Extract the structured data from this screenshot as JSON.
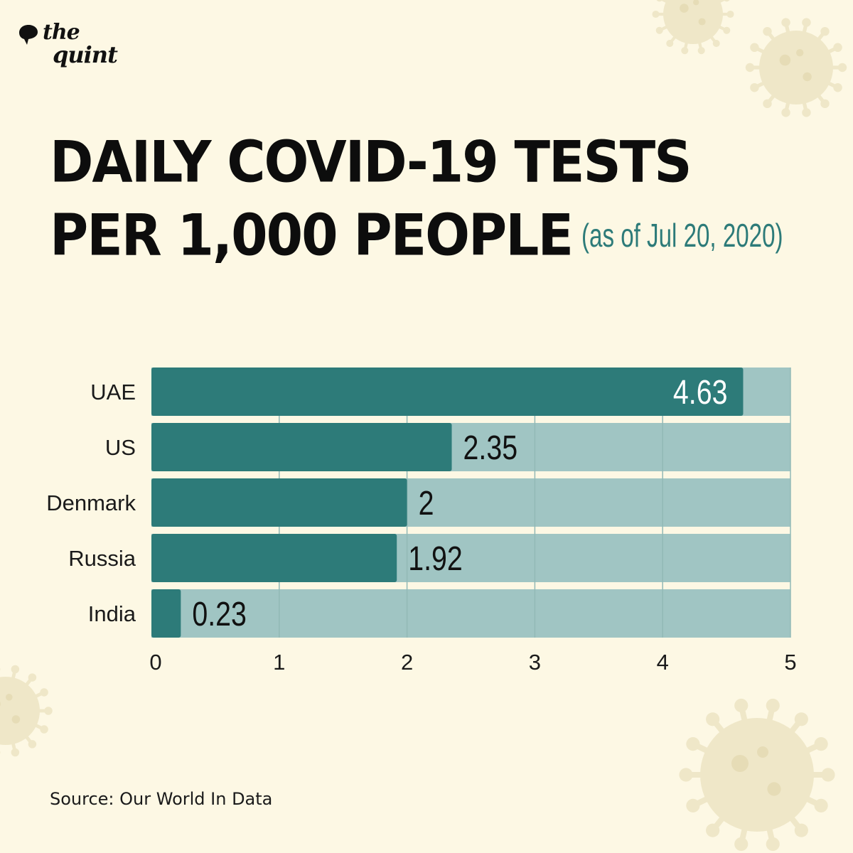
{
  "brand": {
    "logo_line1": "the",
    "logo_line2": "quint"
  },
  "header": {
    "title_line1": "DAILY COVID-19 TESTS",
    "title_line2": "PER 1,000 PEOPLE",
    "subtitle": "(as of Jul 20, 2020)"
  },
  "footer": {
    "source": "Source: Our World In Data"
  },
  "colors": {
    "background": "#fdf8e4",
    "bar_fill": "#2d7b79",
    "bar_track": "#a0c5c3",
    "subtitle": "#2d7b79",
    "virus_decoration": "#eee6c6"
  },
  "chart_data": {
    "type": "bar",
    "orientation": "horizontal",
    "categories": [
      "UAE",
      "US",
      "Denmark",
      "Russia",
      "India"
    ],
    "values": [
      4.63,
      2.35,
      2,
      1.92,
      0.23
    ],
    "value_labels": [
      "4.63",
      "2.35",
      "2",
      "1.92",
      "0.23"
    ],
    "xlim": [
      0,
      5
    ],
    "x_ticks": [
      0,
      1,
      2,
      3,
      4,
      5
    ],
    "x_tick_labels": [
      "0",
      "1",
      "2",
      "3",
      "4",
      "5"
    ],
    "grid": true,
    "title": "",
    "xlabel": "",
    "ylabel": ""
  }
}
